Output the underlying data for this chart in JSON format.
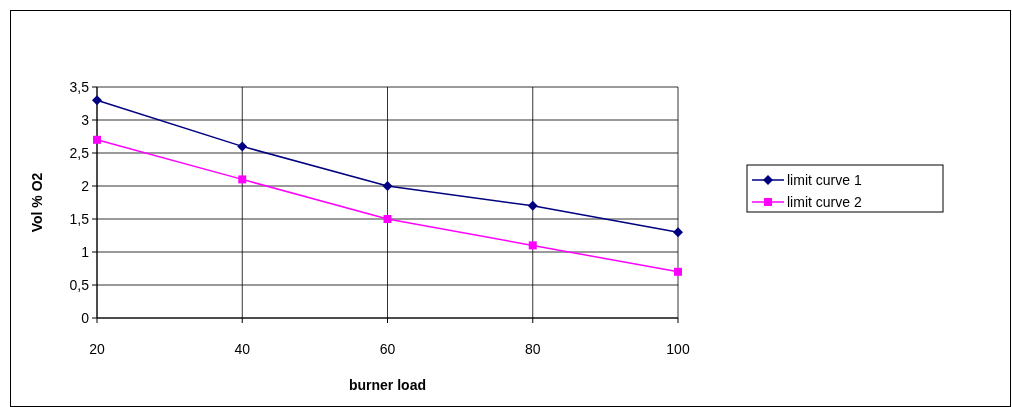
{
  "chart_data": {
    "type": "line",
    "xlabel": "burner load",
    "ylabel": "Vol % O2",
    "x": [
      20,
      40,
      60,
      80,
      100
    ],
    "series": [
      {
        "name": "limit curve 1",
        "color": "#000080",
        "marker": "diamond",
        "values": [
          3.3,
          2.6,
          2.0,
          1.7,
          1.3
        ]
      },
      {
        "name": "limit curve 2",
        "color": "#ff00ff",
        "marker": "square",
        "values": [
          2.7,
          2.1,
          1.5,
          1.1,
          0.7
        ]
      }
    ],
    "xlim": [
      20,
      100
    ],
    "xticks": [
      20,
      40,
      60,
      80,
      100
    ],
    "ylim": [
      0,
      3.5
    ],
    "yticks": [
      0,
      {
        "value": 0.5,
        "label": "0,5"
      },
      1,
      {
        "value": 1.5,
        "label": "1,5"
      },
      2,
      {
        "value": 2.5,
        "label": "2,5"
      },
      3,
      {
        "value": 3.5,
        "label": "3,5"
      }
    ],
    "grid": true,
    "legend": "right"
  }
}
